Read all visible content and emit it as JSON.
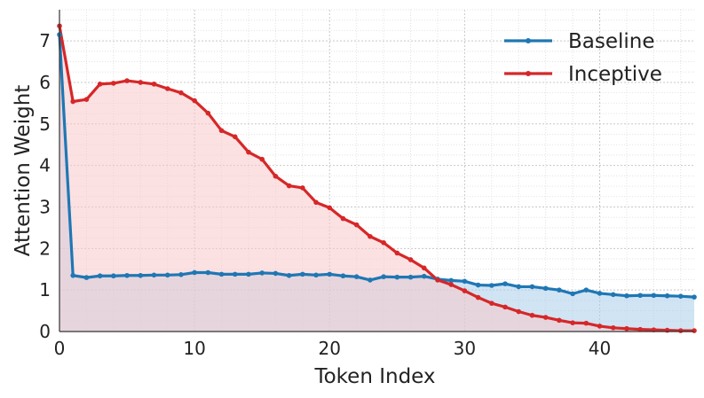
{
  "chart_data": {
    "type": "line",
    "xlabel": "Token Index",
    "ylabel": "Attention Weight",
    "xlim": [
      0,
      47
    ],
    "ylim": [
      0,
      7.75
    ],
    "x_ticks": [
      0,
      10,
      20,
      30,
      40
    ],
    "y_ticks": [
      0,
      1,
      2,
      3,
      4,
      5,
      6,
      7
    ],
    "grid": true,
    "grid_style": "dotted, major and minor",
    "legend_position": "top-right",
    "fill_under_lines": true,
    "x": [
      0,
      1,
      2,
      3,
      4,
      5,
      6,
      7,
      8,
      9,
      10,
      11,
      12,
      13,
      14,
      15,
      16,
      17,
      18,
      19,
      20,
      21,
      22,
      23,
      24,
      25,
      26,
      27,
      28,
      29,
      30,
      31,
      32,
      33,
      34,
      35,
      36,
      37,
      38,
      39,
      40,
      41,
      42,
      43,
      44,
      45,
      46,
      47
    ],
    "series": [
      {
        "name": "Baseline",
        "color": "#1f77b4",
        "fill": "#a9cdeb",
        "values": [
          7.15,
          1.35,
          1.3,
          1.34,
          1.34,
          1.35,
          1.35,
          1.36,
          1.36,
          1.37,
          1.42,
          1.42,
          1.38,
          1.38,
          1.38,
          1.41,
          1.4,
          1.35,
          1.38,
          1.36,
          1.38,
          1.34,
          1.32,
          1.24,
          1.32,
          1.31,
          1.31,
          1.33,
          1.26,
          1.23,
          1.21,
          1.12,
          1.11,
          1.15,
          1.08,
          1.08,
          1.04,
          1.0,
          0.91,
          1.0,
          0.92,
          0.89,
          0.86,
          0.87,
          0.87,
          0.86,
          0.85,
          0.83
        ]
      },
      {
        "name": "Inceptive",
        "color": "#d62728",
        "fill": "#f9c9cb",
        "values": [
          7.36,
          5.54,
          5.59,
          5.96,
          5.98,
          6.04,
          6.0,
          5.96,
          5.85,
          5.75,
          5.56,
          5.26,
          4.84,
          4.69,
          4.32,
          4.15,
          3.74,
          3.51,
          3.46,
          3.11,
          2.98,
          2.72,
          2.57,
          2.29,
          2.14,
          1.89,
          1.73,
          1.53,
          1.24,
          1.13,
          0.98,
          0.82,
          0.68,
          0.59,
          0.48,
          0.39,
          0.34,
          0.27,
          0.21,
          0.2,
          0.13,
          0.09,
          0.07,
          0.05,
          0.04,
          0.03,
          0.02,
          0.02
        ]
      }
    ]
  }
}
